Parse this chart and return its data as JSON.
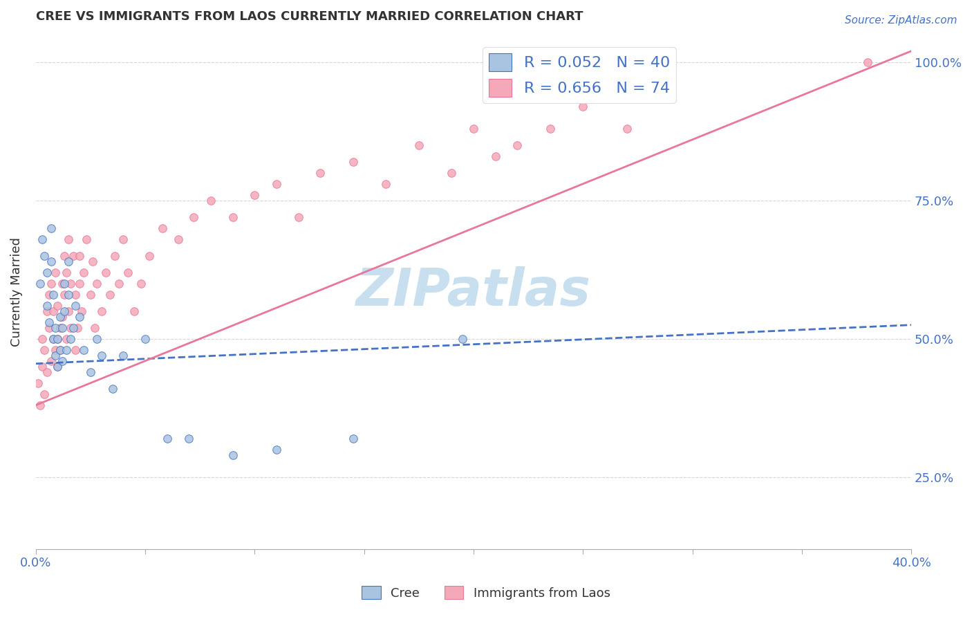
{
  "title": "CREE VS IMMIGRANTS FROM LAOS CURRENTLY MARRIED CORRELATION CHART",
  "source": "Source: ZipAtlas.com",
  "ylabel": "Currently Married",
  "x_min": 0.0,
  "x_max": 0.4,
  "y_min": 0.12,
  "y_max": 1.05,
  "yticks": [
    0.25,
    0.5,
    0.75,
    1.0
  ],
  "ytick_labels": [
    "25.0%",
    "50.0%",
    "75.0%",
    "100.0%"
  ],
  "legend_blue_label": "R = 0.052   N = 40",
  "legend_pink_label": "R = 0.656   N = 74",
  "cree_color": "#a8c4e0",
  "laos_color": "#f4a8b8",
  "cree_line_color": "#4472c4",
  "laos_line_color": "#e8789a",
  "background_color": "#ffffff",
  "grid_color": "#cccccc",
  "title_color": "#333333",
  "axis_label_color": "#4472c4",
  "watermark_text": "ZIPatlas",
  "watermark_color": "#c8dff0",
  "cree_trend_x0": 0.0,
  "cree_trend_y0": 0.455,
  "cree_trend_x1": 0.4,
  "cree_trend_y1": 0.525,
  "laos_trend_x0": 0.0,
  "laos_trend_y0": 0.38,
  "laos_trend_x1": 0.4,
  "laos_trend_y1": 1.02,
  "cree_scatter_x": [
    0.002,
    0.003,
    0.004,
    0.005,
    0.005,
    0.006,
    0.007,
    0.007,
    0.008,
    0.008,
    0.009,
    0.009,
    0.01,
    0.01,
    0.011,
    0.011,
    0.012,
    0.012,
    0.013,
    0.013,
    0.014,
    0.015,
    0.015,
    0.016,
    0.017,
    0.018,
    0.02,
    0.022,
    0.025,
    0.028,
    0.03,
    0.035,
    0.04,
    0.05,
    0.06,
    0.07,
    0.09,
    0.11,
    0.145,
    0.195
  ],
  "cree_scatter_y": [
    0.6,
    0.68,
    0.65,
    0.56,
    0.62,
    0.53,
    0.64,
    0.7,
    0.58,
    0.5,
    0.47,
    0.52,
    0.45,
    0.5,
    0.48,
    0.54,
    0.46,
    0.52,
    0.55,
    0.6,
    0.48,
    0.64,
    0.58,
    0.5,
    0.52,
    0.56,
    0.54,
    0.48,
    0.44,
    0.5,
    0.47,
    0.41,
    0.47,
    0.5,
    0.32,
    0.32,
    0.29,
    0.3,
    0.32,
    0.5
  ],
  "laos_scatter_x": [
    0.001,
    0.002,
    0.003,
    0.003,
    0.004,
    0.004,
    0.005,
    0.005,
    0.006,
    0.006,
    0.007,
    0.007,
    0.008,
    0.008,
    0.009,
    0.009,
    0.01,
    0.01,
    0.01,
    0.011,
    0.011,
    0.012,
    0.012,
    0.013,
    0.013,
    0.014,
    0.014,
    0.015,
    0.015,
    0.016,
    0.016,
    0.017,
    0.018,
    0.018,
    0.019,
    0.02,
    0.02,
    0.021,
    0.022,
    0.023,
    0.025,
    0.026,
    0.027,
    0.028,
    0.03,
    0.032,
    0.034,
    0.036,
    0.038,
    0.04,
    0.042,
    0.045,
    0.048,
    0.052,
    0.058,
    0.065,
    0.072,
    0.08,
    0.09,
    0.1,
    0.11,
    0.12,
    0.13,
    0.145,
    0.16,
    0.175,
    0.19,
    0.2,
    0.21,
    0.22,
    0.235,
    0.25,
    0.27,
    0.38
  ],
  "laos_scatter_y": [
    0.42,
    0.38,
    0.45,
    0.5,
    0.4,
    0.48,
    0.55,
    0.44,
    0.52,
    0.58,
    0.46,
    0.6,
    0.5,
    0.55,
    0.48,
    0.62,
    0.45,
    0.5,
    0.56,
    0.52,
    0.48,
    0.6,
    0.54,
    0.65,
    0.58,
    0.5,
    0.62,
    0.55,
    0.68,
    0.52,
    0.6,
    0.65,
    0.48,
    0.58,
    0.52,
    0.6,
    0.65,
    0.55,
    0.62,
    0.68,
    0.58,
    0.64,
    0.52,
    0.6,
    0.55,
    0.62,
    0.58,
    0.65,
    0.6,
    0.68,
    0.62,
    0.55,
    0.6,
    0.65,
    0.7,
    0.68,
    0.72,
    0.75,
    0.72,
    0.76,
    0.78,
    0.72,
    0.8,
    0.82,
    0.78,
    0.85,
    0.8,
    0.88,
    0.83,
    0.85,
    0.88,
    0.92,
    0.88,
    1.0
  ]
}
